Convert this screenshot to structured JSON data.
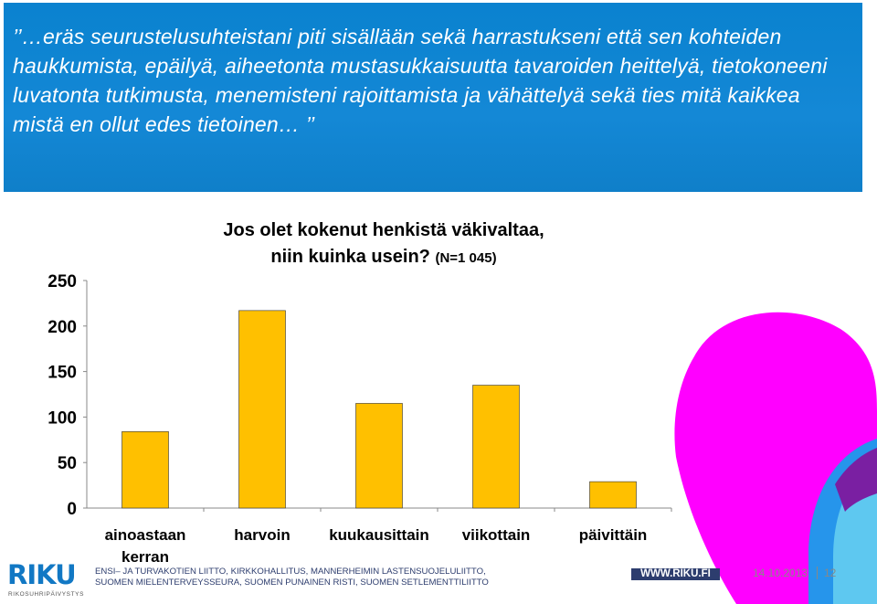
{
  "banner": {
    "quote": "’’…eräs seurustelusuhteistani piti sisällään sekä harrastukseni että sen kohteiden haukkumista, epäilyä, aiheetonta mustasukkaisuutta tavaroiden heittelyä, tietokoneeni luvatonta tutkimusta, menemisteni rajoittamista ja vähättelyä sekä ties mitä kaikkea mistä en ollut edes tietoinen… ’’"
  },
  "chart_data": {
    "type": "bar",
    "title_line1": "Jos olet kokenut henkistä väkivaltaa,",
    "title_line2": "niin kuinka usein?",
    "title_n": "(N=1 045)",
    "categories": [
      [
        "ainoastaan",
        "kerran"
      ],
      [
        "harvoin"
      ],
      [
        "kuukausittain"
      ],
      [
        "viikottain"
      ],
      [
        "päivittäin"
      ]
    ],
    "values": [
      84,
      217,
      115,
      135,
      29
    ],
    "ylim": [
      0,
      250
    ],
    "yticks": [
      "0",
      "50",
      "100",
      "150",
      "200",
      "250"
    ],
    "bar_color": "#ffc000",
    "grid": false
  },
  "footer": {
    "line1": "ENSI– JA TURVAKOTIEN LIITTO, KIRKKOHALLITUS, MANNERHEIMIN LASTENSUOJELULIITTO,",
    "line2": "SUOMEN MIELENTERVEYSSEURA, SUOMEN PUNAINEN RISTI, SUOMEN SETLEMENTTILIITTO",
    "logo_main": "RIKU",
    "logo_sub": "RIKOSUHRIPÄIVYSTYS",
    "website": "WWW.RIKU.FI",
    "date": "14.10.2013",
    "page": "12"
  },
  "colors": {
    "banner": "#0a82cf",
    "magenta": "#ff00ff",
    "cyan": "#0ea5e9"
  }
}
